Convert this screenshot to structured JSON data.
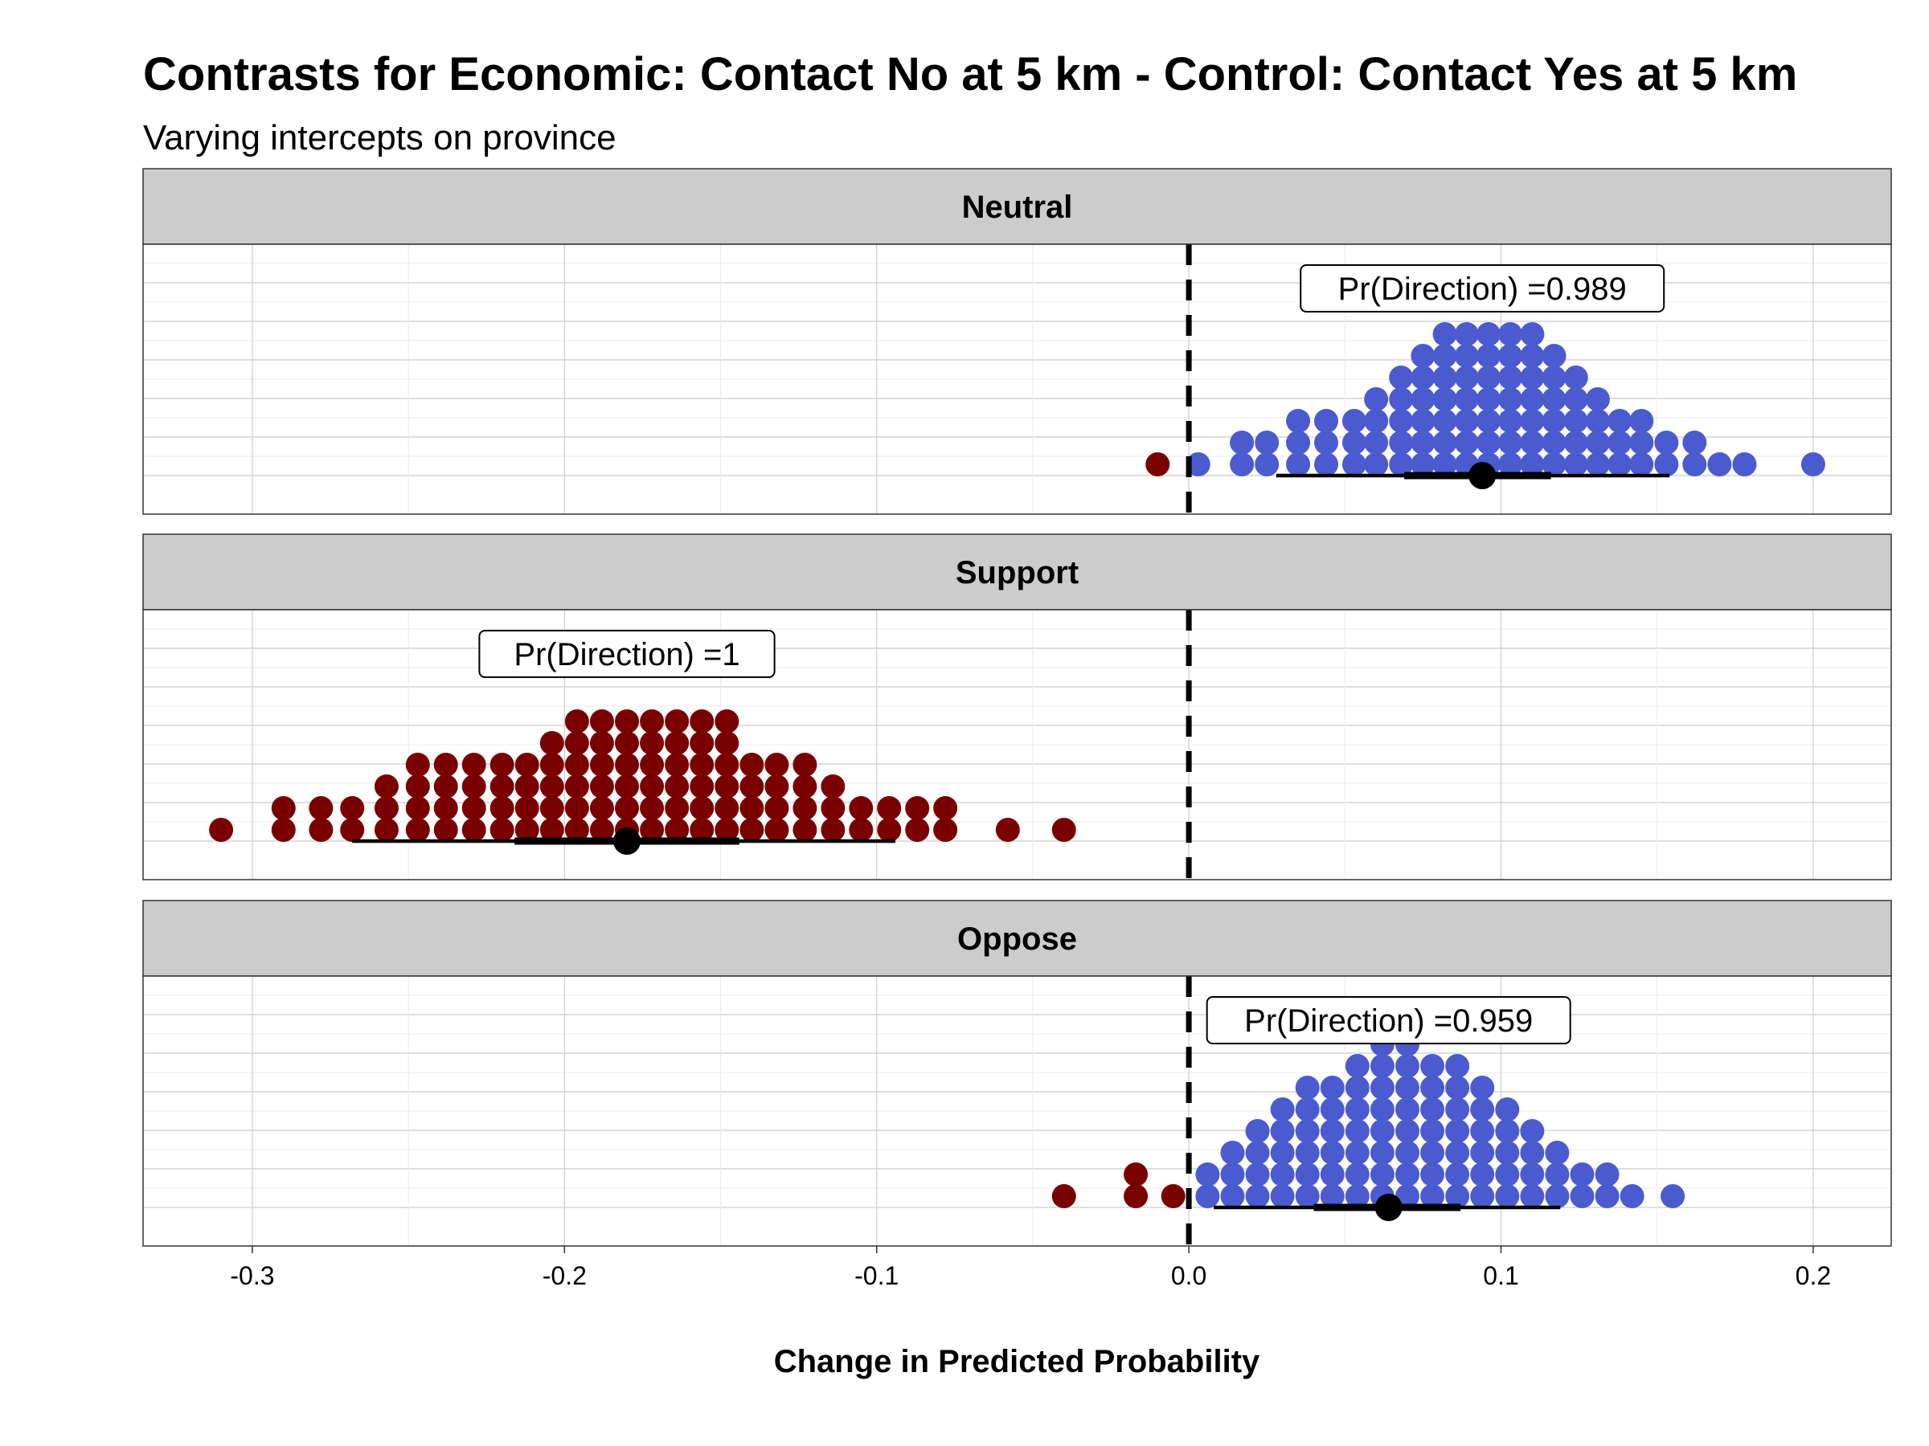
{
  "title": "Contrasts for Economic: Contact No at 5 km - Control: Contact Yes at 5 km",
  "subtitle": "Varying intercepts on province",
  "xlabel": "Change in Predicted Probability",
  "colors": {
    "positive": "#4a5bcf",
    "negative": "#7a0000",
    "strip": "#cccccc",
    "interval": "#000000"
  },
  "chart_data": {
    "type": "scatter",
    "xlim": [
      -0.335,
      0.225
    ],
    "x_ticks": [
      -0.3,
      -0.2,
      -0.1,
      0.0,
      0.1,
      0.2
    ],
    "x_tick_labels": [
      "-0.3",
      "-0.2",
      "-0.1",
      "0.0",
      "0.1",
      "0.2"
    ],
    "reference_line_x": 0.0,
    "grid": true,
    "panels": [
      {
        "strip": "Neutral",
        "label": "Pr(Direction) =0.989",
        "median": 0.094,
        "interval_66": [
          0.069,
          0.116
        ],
        "interval_95": [
          0.028,
          0.154
        ],
        "counts": [
          {
            "x": -0.01,
            "n": 1
          },
          {
            "x": 0.003,
            "n": 1
          },
          {
            "x": 0.017,
            "n": 2
          },
          {
            "x": 0.025,
            "n": 2
          },
          {
            "x": 0.035,
            "n": 3
          },
          {
            "x": 0.044,
            "n": 3
          },
          {
            "x": 0.053,
            "n": 3
          },
          {
            "x": 0.06,
            "n": 4
          },
          {
            "x": 0.068,
            "n": 5
          },
          {
            "x": 0.075,
            "n": 6
          },
          {
            "x": 0.082,
            "n": 7
          },
          {
            "x": 0.089,
            "n": 7
          },
          {
            "x": 0.096,
            "n": 7
          },
          {
            "x": 0.103,
            "n": 7
          },
          {
            "x": 0.11,
            "n": 7
          },
          {
            "x": 0.117,
            "n": 6
          },
          {
            "x": 0.124,
            "n": 5
          },
          {
            "x": 0.131,
            "n": 4
          },
          {
            "x": 0.138,
            "n": 3
          },
          {
            "x": 0.145,
            "n": 3
          },
          {
            "x": 0.153,
            "n": 2
          },
          {
            "x": 0.162,
            "n": 2
          },
          {
            "x": 0.17,
            "n": 1
          },
          {
            "x": 0.178,
            "n": 1
          },
          {
            "x": 0.2,
            "n": 1
          }
        ]
      },
      {
        "strip": "Support",
        "label": "Pr(Direction) =1",
        "median": -0.18,
        "interval_66": [
          -0.216,
          -0.144
        ],
        "interval_95": [
          -0.268,
          -0.094
        ],
        "counts": [
          {
            "x": -0.31,
            "n": 1
          },
          {
            "x": -0.29,
            "n": 2
          },
          {
            "x": -0.278,
            "n": 2
          },
          {
            "x": -0.268,
            "n": 2
          },
          {
            "x": -0.257,
            "n": 3
          },
          {
            "x": -0.247,
            "n": 4
          },
          {
            "x": -0.238,
            "n": 4
          },
          {
            "x": -0.229,
            "n": 4
          },
          {
            "x": -0.22,
            "n": 4
          },
          {
            "x": -0.212,
            "n": 4
          },
          {
            "x": -0.204,
            "n": 5
          },
          {
            "x": -0.196,
            "n": 6
          },
          {
            "x": -0.188,
            "n": 6
          },
          {
            "x": -0.18,
            "n": 6
          },
          {
            "x": -0.172,
            "n": 6
          },
          {
            "x": -0.164,
            "n": 6
          },
          {
            "x": -0.156,
            "n": 6
          },
          {
            "x": -0.148,
            "n": 6
          },
          {
            "x": -0.14,
            "n": 4
          },
          {
            "x": -0.132,
            "n": 4
          },
          {
            "x": -0.123,
            "n": 4
          },
          {
            "x": -0.114,
            "n": 3
          },
          {
            "x": -0.105,
            "n": 2
          },
          {
            "x": -0.096,
            "n": 2
          },
          {
            "x": -0.087,
            "n": 2
          },
          {
            "x": -0.078,
            "n": 2
          },
          {
            "x": -0.058,
            "n": 1
          },
          {
            "x": -0.04,
            "n": 1
          }
        ]
      },
      {
        "strip": "Oppose",
        "label": "Pr(Direction) =0.959",
        "median": 0.064,
        "interval_66": [
          0.04,
          0.087
        ],
        "interval_95": [
          0.008,
          0.119
        ],
        "counts": [
          {
            "x": -0.04,
            "n": 1
          },
          {
            "x": -0.017,
            "n": 2
          },
          {
            "x": -0.005,
            "n": 1
          },
          {
            "x": 0.006,
            "n": 2
          },
          {
            "x": 0.014,
            "n": 3
          },
          {
            "x": 0.022,
            "n": 4
          },
          {
            "x": 0.03,
            "n": 5
          },
          {
            "x": 0.038,
            "n": 6
          },
          {
            "x": 0.046,
            "n": 6
          },
          {
            "x": 0.054,
            "n": 7
          },
          {
            "x": 0.062,
            "n": 8
          },
          {
            "x": 0.07,
            "n": 8
          },
          {
            "x": 0.078,
            "n": 7
          },
          {
            "x": 0.086,
            "n": 7
          },
          {
            "x": 0.094,
            "n": 6
          },
          {
            "x": 0.102,
            "n": 5
          },
          {
            "x": 0.11,
            "n": 4
          },
          {
            "x": 0.118,
            "n": 3
          },
          {
            "x": 0.126,
            "n": 2
          },
          {
            "x": 0.134,
            "n": 2
          },
          {
            "x": 0.142,
            "n": 1
          },
          {
            "x": 0.155,
            "n": 1
          }
        ]
      }
    ]
  }
}
